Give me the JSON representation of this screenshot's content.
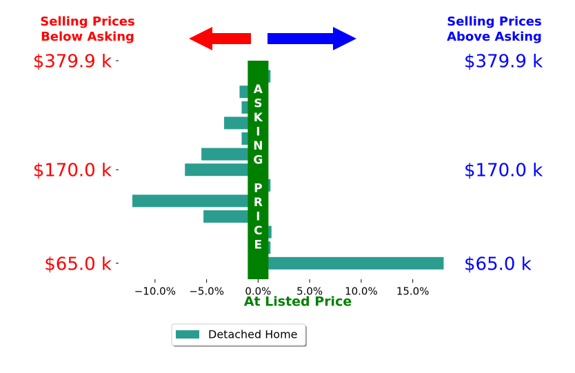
{
  "chart_data": {
    "type": "hbar",
    "left_annotation": [
      "Selling Prices",
      "Below Asking"
    ],
    "right_annotation": [
      "Selling Prices",
      "Above Asking"
    ],
    "band_label": "ASKING PRICE",
    "xlabel": "At Listed Price",
    "categories": [
      "$379.9 k",
      null,
      null,
      null,
      null,
      null,
      null,
      "$170.0 k",
      null,
      null,
      null,
      null,
      null,
      "$65.0 k"
    ],
    "series": [
      {
        "name": "Detached Home",
        "color": "#2a9d8f",
        "values": [
          0,
          1.2,
          -1.8,
          -1.6,
          -3.3,
          -1.6,
          -5.5,
          -7.1,
          1.2,
          -12.2,
          -5.3,
          1.3,
          1.2,
          18.0
        ]
      }
    ],
    "xlim": [
      -13.0,
      18.1
    ],
    "xticks": [
      {
        "value": -10,
        "label": "−10.0%"
      },
      {
        "value": -5,
        "label": "−5.0%"
      },
      {
        "value": 0,
        "label": "0.0%"
      },
      {
        "value": 5,
        "label": "5.0%"
      },
      {
        "value": 10,
        "label": "10.0%"
      },
      {
        "value": 15,
        "label": "15.0%"
      }
    ],
    "left_label_color": "#ff0000",
    "right_label_color": "#0000ff",
    "band_color": "#008000"
  }
}
